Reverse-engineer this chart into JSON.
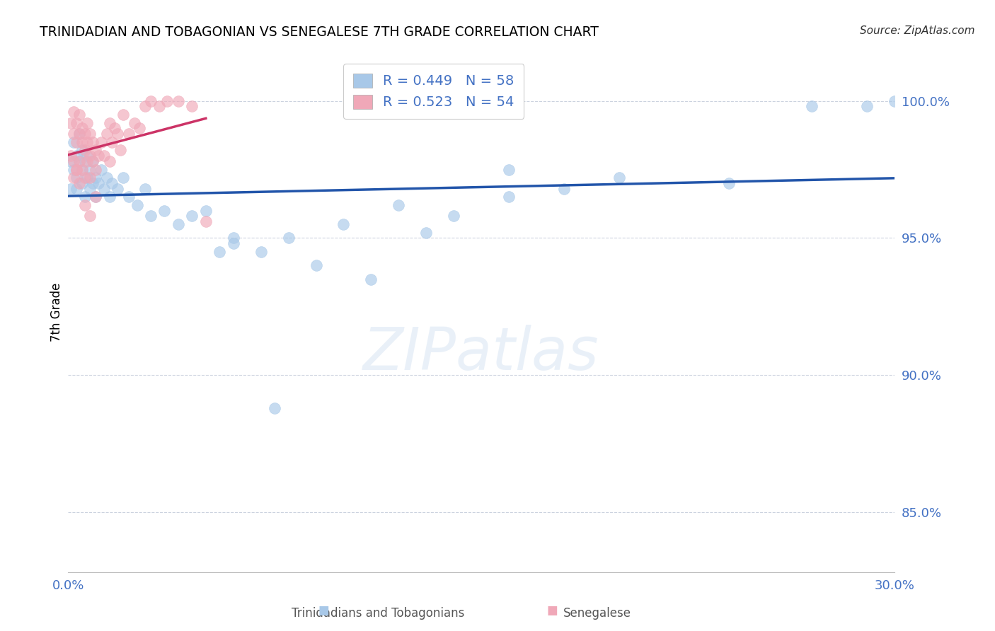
{
  "title": "TRINIDADIAN AND TOBAGONIAN VS SENEGALESE 7TH GRADE CORRELATION CHART",
  "source": "Source: ZipAtlas.com",
  "ylabel": "7th Grade",
  "xlim": [
    0.0,
    0.3
  ],
  "ylim": [
    0.828,
    1.018
  ],
  "yticks": [
    0.85,
    0.9,
    0.95,
    1.0
  ],
  "ytick_labels": [
    "85.0%",
    "90.0%",
    "95.0%",
    "100.0%"
  ],
  "xticks": [
    0.0,
    0.03,
    0.06,
    0.09,
    0.12,
    0.15,
    0.18,
    0.21,
    0.24,
    0.27,
    0.3
  ],
  "xtick_labels": [
    "0.0%",
    "",
    "",
    "",
    "",
    "",
    "",
    "",
    "",
    "",
    "30.0%"
  ],
  "blue_R": 0.449,
  "blue_N": 58,
  "pink_R": 0.523,
  "pink_N": 54,
  "blue_color": "#a8c8e8",
  "pink_color": "#f0a8b8",
  "blue_line_color": "#2255aa",
  "pink_line_color": "#cc3366",
  "legend_label_blue": "Trinidadians and Tobagonians",
  "legend_label_pink": "Senegalese",
  "watermark": "ZIPatlas",
  "blue_x": [
    0.001,
    0.001,
    0.002,
    0.002,
    0.003,
    0.003,
    0.003,
    0.004,
    0.004,
    0.005,
    0.005,
    0.005,
    0.006,
    0.006,
    0.007,
    0.007,
    0.008,
    0.008,
    0.009,
    0.009,
    0.01,
    0.01,
    0.011,
    0.012,
    0.013,
    0.014,
    0.015,
    0.016,
    0.018,
    0.02,
    0.022,
    0.025,
    0.028,
    0.03,
    0.035,
    0.04,
    0.045,
    0.05,
    0.055,
    0.06,
    0.07,
    0.08,
    0.09,
    0.1,
    0.12,
    0.14,
    0.16,
    0.18,
    0.06,
    0.075,
    0.11,
    0.13,
    0.16,
    0.2,
    0.24,
    0.27,
    0.29,
    0.3
  ],
  "blue_y": [
    0.978,
    0.968,
    0.975,
    0.985,
    0.972,
    0.98,
    0.968,
    0.978,
    0.988,
    0.975,
    0.982,
    0.97,
    0.978,
    0.965,
    0.972,
    0.98,
    0.968,
    0.975,
    0.97,
    0.978,
    0.972,
    0.965,
    0.97,
    0.975,
    0.968,
    0.972,
    0.965,
    0.97,
    0.968,
    0.972,
    0.965,
    0.962,
    0.968,
    0.958,
    0.96,
    0.955,
    0.958,
    0.96,
    0.945,
    0.95,
    0.945,
    0.95,
    0.94,
    0.955,
    0.962,
    0.958,
    0.965,
    0.968,
    0.948,
    0.888,
    0.935,
    0.952,
    0.975,
    0.972,
    0.97,
    0.998,
    0.998,
    1.0
  ],
  "pink_x": [
    0.001,
    0.001,
    0.002,
    0.002,
    0.002,
    0.003,
    0.003,
    0.003,
    0.004,
    0.004,
    0.004,
    0.005,
    0.005,
    0.005,
    0.006,
    0.006,
    0.006,
    0.007,
    0.007,
    0.007,
    0.008,
    0.008,
    0.008,
    0.009,
    0.009,
    0.01,
    0.01,
    0.011,
    0.012,
    0.013,
    0.014,
    0.015,
    0.016,
    0.017,
    0.018,
    0.019,
    0.02,
    0.022,
    0.024,
    0.026,
    0.028,
    0.03,
    0.033,
    0.036,
    0.04,
    0.045,
    0.05,
    0.01,
    0.008,
    0.006,
    0.004,
    0.003,
    0.002,
    0.015
  ],
  "pink_y": [
    0.98,
    0.992,
    0.988,
    0.978,
    0.996,
    0.985,
    0.975,
    0.992,
    0.988,
    0.978,
    0.995,
    0.985,
    0.975,
    0.99,
    0.982,
    0.972,
    0.988,
    0.978,
    0.985,
    0.992,
    0.98,
    0.972,
    0.988,
    0.978,
    0.985,
    0.975,
    0.982,
    0.98,
    0.985,
    0.98,
    0.988,
    0.992,
    0.985,
    0.99,
    0.988,
    0.982,
    0.995,
    0.988,
    0.992,
    0.99,
    0.998,
    1.0,
    0.998,
    1.0,
    1.0,
    0.998,
    0.956,
    0.965,
    0.958,
    0.962,
    0.97,
    0.975,
    0.972,
    0.978
  ]
}
